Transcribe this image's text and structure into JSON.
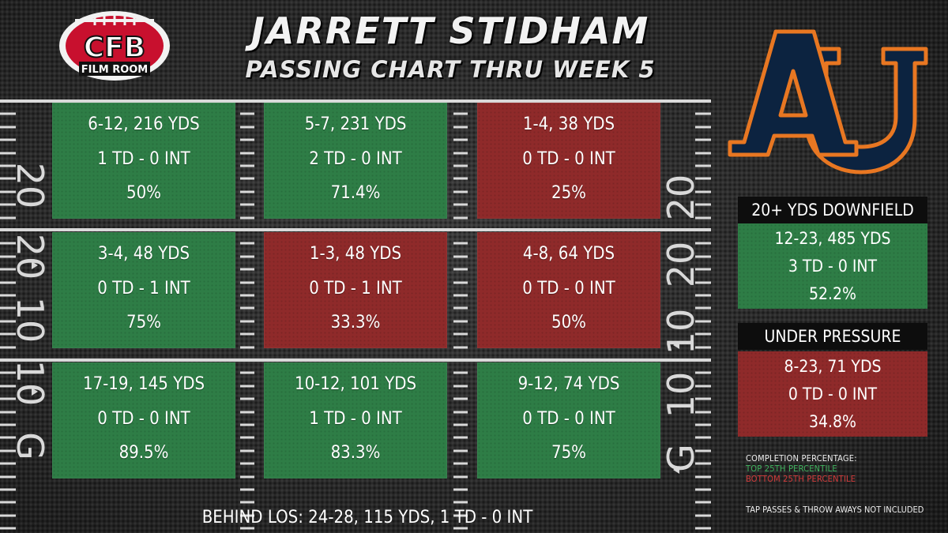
{
  "header": {
    "logo_text_top": "CFB",
    "logo_text_bottom": "FILM ROOM",
    "title": "JARRETT STIDHAM",
    "subtitle": "PASSING CHART THRU WEEK 5"
  },
  "field": {
    "yard_numbers": {
      "twenty": "20",
      "ten": "10",
      "goal": "G"
    }
  },
  "colors": {
    "top_25": "#2e7d46",
    "bottom_25": "#8f2a2a",
    "auburn_navy": "#0c2340",
    "auburn_orange": "#e87722"
  },
  "chart_data": {
    "type": "table",
    "title": "JARRETT STIDHAM",
    "subtitle": "PASSING CHART THRU WEEK 5",
    "columns": [
      "left",
      "middle",
      "right"
    ],
    "rows": [
      [
        {
          "comp_att": "6-12",
          "yards": "216 YDS",
          "line1": "6-12, 216 YDS",
          "line2": "1 TD - 0 INT",
          "line3": "50%",
          "tier": "top_25"
        },
        {
          "comp_att": "5-7",
          "yards": "231 YDS",
          "line1": "5-7, 231 YDS",
          "line2": "2 TD - 0 INT",
          "line3": "71.4%",
          "tier": "top_25"
        },
        {
          "comp_att": "1-4",
          "yards": "38 YDS",
          "line1": "1-4, 38 YDS",
          "line2": "0 TD - 0 INT",
          "line3": "25%",
          "tier": "bottom_25"
        }
      ],
      [
        {
          "comp_att": "3-4",
          "yards": "48 YDS",
          "line1": "3-4, 48 YDS",
          "line2": "0 TD - 1 INT",
          "line3": "75%",
          "tier": "top_25"
        },
        {
          "comp_att": "1-3",
          "yards": "48 YDS",
          "line1": "1-3, 48 YDS",
          "line2": "0 TD - 1 INT",
          "line3": "33.3%",
          "tier": "bottom_25"
        },
        {
          "comp_att": "4-8",
          "yards": "64 YDS",
          "line1": "4-8, 64 YDS",
          "line2": "0 TD - 0 INT",
          "line3": "50%",
          "tier": "bottom_25"
        }
      ],
      [
        {
          "comp_att": "17-19",
          "yards": "145 YDS",
          "line1": "17-19, 145 YDS",
          "line2": "0 TD - 0 INT",
          "line3": "89.5%",
          "tier": "top_25"
        },
        {
          "comp_att": "10-12",
          "yards": "101 YDS",
          "line1": "10-12, 101 YDS",
          "line2": "1 TD - 0 INT",
          "line3": "83.3%",
          "tier": "top_25"
        },
        {
          "comp_att": "9-12",
          "yards": "74 YDS",
          "line1": "9-12, 74 YDS",
          "line2": "0 TD - 0 INT",
          "line3": "75%",
          "tier": "top_25"
        }
      ]
    ],
    "behind_los": "BEHIND LOS: 24-28, 115 YDS, 1 TD - 0 INT",
    "downfield": {
      "label": "20+ YDS DOWNFIELD",
      "line1": "12-23, 485 YDS",
      "line2": "3 TD - 0 INT",
      "line3": "52.2%",
      "tier": "top_25"
    },
    "pressure": {
      "label": "UNDER PRESSURE",
      "line1": "8-23, 71 YDS",
      "line2": "0 TD - 0 INT",
      "line3": "34.8%",
      "tier": "bottom_25"
    },
    "legend": {
      "title": "COMPLETION PERCENTAGE:",
      "top": "TOP 25TH PERCENTILE",
      "bottom": "BOTTOM 25TH PERCENTILE"
    },
    "note": "TAP PASSES & THROW AWAYS NOT INCLUDED"
  }
}
